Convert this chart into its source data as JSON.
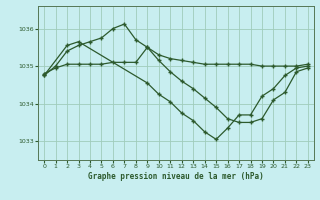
{
  "title": "Graphe pression niveau de la mer (hPa)",
  "bg_color": "#c8eef0",
  "grid_color": "#a0ccbb",
  "line_color": "#2d5a2d",
  "marker": "+",
  "xlim": [
    -0.5,
    23.5
  ],
  "ylim": [
    1032.5,
    1036.6
  ],
  "yticks": [
    1033,
    1034,
    1035,
    1036
  ],
  "xticks": [
    0,
    1,
    2,
    3,
    4,
    5,
    6,
    7,
    8,
    9,
    10,
    11,
    12,
    13,
    14,
    15,
    16,
    17,
    18,
    19,
    20,
    21,
    22,
    23
  ],
  "line1_x": [
    0,
    1,
    2,
    3,
    4,
    5,
    6,
    7,
    8,
    9,
    10,
    11,
    12,
    13,
    14,
    15,
    16,
    17,
    18,
    19,
    20,
    21,
    22,
    23
  ],
  "line1_y": [
    1034.8,
    1034.95,
    1035.05,
    1035.05,
    1035.05,
    1035.05,
    1035.1,
    1035.1,
    1035.1,
    1035.5,
    1035.3,
    1035.2,
    1035.15,
    1035.1,
    1035.05,
    1035.05,
    1035.05,
    1035.05,
    1035.05,
    1035.0,
    1035.0,
    1035.0,
    1035.0,
    1035.05
  ],
  "line2_x": [
    0,
    1,
    2,
    3,
    4,
    5,
    6,
    7,
    8,
    9,
    10,
    11,
    12,
    13,
    14,
    15,
    16,
    17,
    18,
    19,
    20,
    21,
    22,
    23
  ],
  "line2_y": [
    1034.75,
    1035.0,
    1035.4,
    1035.55,
    1035.65,
    1035.75,
    1036.0,
    1036.12,
    1035.7,
    1035.5,
    1035.15,
    1034.85,
    1034.6,
    1034.4,
    1034.15,
    1033.9,
    1033.6,
    1033.5,
    1033.5,
    1033.6,
    1034.1,
    1034.3,
    1034.85,
    1034.95
  ],
  "line3_x": [
    0,
    2,
    3,
    9,
    10,
    11,
    12,
    13,
    14,
    15,
    16,
    17,
    18,
    19,
    20,
    21,
    22,
    23
  ],
  "line3_y": [
    1034.75,
    1035.55,
    1035.65,
    1034.55,
    1034.25,
    1034.05,
    1033.75,
    1033.55,
    1033.25,
    1033.05,
    1033.35,
    1033.7,
    1033.7,
    1034.2,
    1034.4,
    1034.75,
    1034.95,
    1035.0
  ]
}
